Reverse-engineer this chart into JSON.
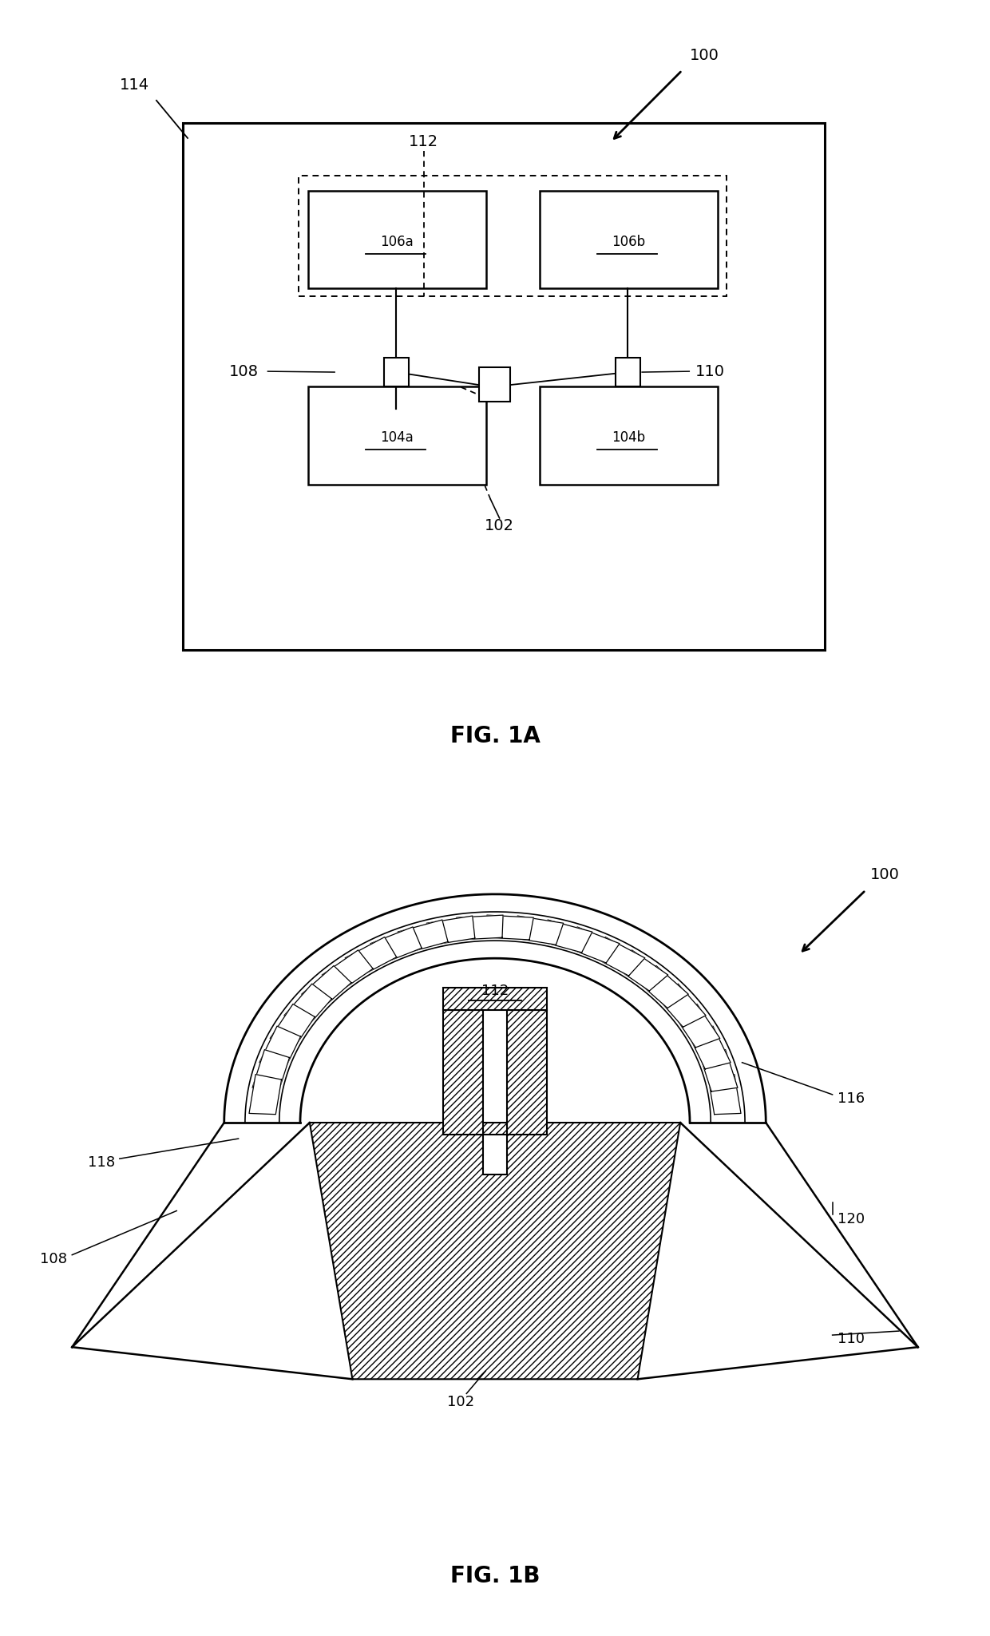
{
  "fig1a_label": "FIG. 1A",
  "fig1b_label": "FIG. 1B",
  "bg_color": "#ffffff",
  "line_color": "#000000",
  "label_100_1": "100",
  "label_114": "114",
  "label_112_1": "112",
  "label_106a": "106a",
  "label_106b": "106b",
  "label_108_1": "108",
  "label_110_1": "110",
  "label_104a": "104a",
  "label_104b": "104b",
  "label_102_1": "102",
  "label_100_2": "100",
  "label_112_2": "112",
  "label_116": "116",
  "label_118": "118",
  "label_108_2": "108",
  "label_102_2": "102",
  "label_120": "120",
  "label_110_2": "110"
}
